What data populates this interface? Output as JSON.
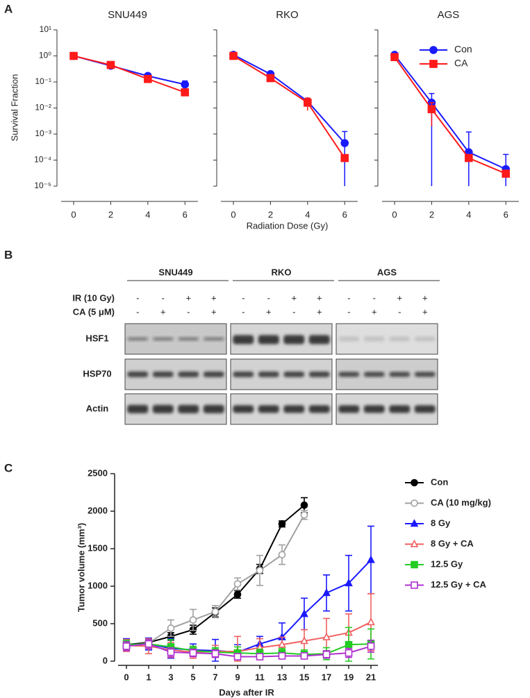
{
  "panel_labels": [
    "A",
    "B",
    "C"
  ],
  "chart_data": [
    {
      "type": "line",
      "title": "SNU449",
      "log_y": true,
      "ylabel": "Survival Fraction",
      "xlim": [
        -0.9,
        6.7
      ],
      "xticks": [
        0,
        2,
        4,
        6
      ],
      "ylim": [
        1e-05,
        10
      ],
      "yticks": [
        {
          "value": 1e-05,
          "label": "10⁻⁵"
        },
        {
          "value": 0.0001,
          "label": "10⁻⁴"
        },
        {
          "value": 0.001,
          "label": "10⁻³"
        },
        {
          "value": 0.01,
          "label": "10⁻²"
        },
        {
          "value": 0.1,
          "label": "10⁻¹"
        },
        {
          "value": 1,
          "label": "10⁰"
        },
        {
          "value": 10,
          "label": "10¹"
        }
      ],
      "x": [
        0,
        2,
        4,
        6
      ],
      "series": [
        {
          "name": "Con",
          "color": "#1a1aff",
          "marker": "circle",
          "values": [
            1,
            0.42,
            0.17,
            0.08
          ],
          "errors": [
            0.1,
            0.05,
            0.03,
            0.03
          ]
        },
        {
          "name": "CA",
          "color": "#ff1a1a",
          "marker": "square",
          "values": [
            1,
            0.45,
            0.13,
            0.04
          ],
          "errors": [
            0.1,
            0.05,
            0.02,
            0.008
          ]
        }
      ]
    },
    {
      "type": "line",
      "title": "RKO",
      "log_y": true,
      "xlabel": "Radiation Dose (Gy)",
      "xlim": [
        -0.9,
        6.7
      ],
      "xticks": [
        0,
        2,
        4,
        6
      ],
      "ylim": [
        1e-05,
        10
      ],
      "x": [
        0,
        2,
        4,
        6
      ],
      "series": [
        {
          "name": "Con",
          "color": "#1a1aff",
          "marker": "circle",
          "values": [
            1.1,
            0.2,
            0.018,
            0.00045
          ],
          "errors": [
            0.1,
            0.03,
            0.005,
            0.0008
          ]
        },
        {
          "name": "CA",
          "color": "#ff1a1a",
          "marker": "square",
          "values": [
            1,
            0.14,
            0.016,
            0.00012
          ],
          "errors": [
            0.1,
            0.02,
            0.008,
            2e-05
          ]
        }
      ]
    },
    {
      "type": "line",
      "title": "AGS",
      "log_y": true,
      "legend": "upper right",
      "xlim": [
        -0.9,
        6.7
      ],
      "xticks": [
        0,
        2,
        4,
        6
      ],
      "ylim": [
        1e-05,
        10
      ],
      "x": [
        0,
        2,
        4,
        6
      ],
      "series": [
        {
          "name": "Con",
          "color": "#1a1aff",
          "marker": "circle",
          "values": [
            1.1,
            0.016,
            0.0002,
            4.5e-05
          ],
          "errors": [
            0.2,
            0.02,
            0.001,
            0.00012
          ]
        },
        {
          "name": "CA",
          "color": "#ff1a1a",
          "marker": "square",
          "values": [
            0.9,
            0.009,
            0.00012,
            3e-05
          ],
          "errors": [
            0.1,
            0.007,
            3e-05,
            5e-06
          ]
        }
      ]
    },
    {
      "type": "line",
      "ylabel": "Tumor volume (mm³)",
      "xlabel": "Days after IR",
      "legend": "right",
      "categories": [
        "0",
        "1",
        "3",
        "5",
        "7",
        "9",
        "11",
        "13",
        "15",
        "17",
        "19",
        "21"
      ],
      "ylim": [
        0,
        2500
      ],
      "yticks": [
        0,
        500,
        1000,
        1500,
        2000,
        2500
      ],
      "series": [
        {
          "name": "Con",
          "color": "#000000",
          "marker": "circle",
          "filled": true,
          "values": [
            220,
            250,
            330,
            420,
            650,
            890,
            1230,
            1830,
            2080,
            null,
            null,
            null
          ],
          "errors": [
            40,
            50,
            50,
            60,
            60,
            50,
            60,
            40,
            100,
            null,
            null,
            null
          ]
        },
        {
          "name": "CA (10 mg/kg)",
          "color": "#a0a0a0",
          "marker": "circle",
          "filled": false,
          "values": [
            210,
            240,
            440,
            550,
            660,
            1030,
            1210,
            1420,
            1950,
            null,
            null,
            null
          ],
          "errors": [
            60,
            60,
            110,
            140,
            80,
            80,
            200,
            130,
            60,
            null,
            null,
            null
          ]
        },
        {
          "name": "8 Gy",
          "color": "#1a1aff",
          "marker": "triangle",
          "filled": true,
          "values": [
            220,
            230,
            170,
            150,
            140,
            120,
            230,
            320,
            630,
            910,
            1040,
            1350
          ],
          "errors": [
            80,
            80,
            130,
            80,
            150,
            100,
            100,
            190,
            210,
            240,
            370,
            450
          ]
        },
        {
          "name": "8 Gy + CA",
          "color": "#f06060",
          "marker": "triangle",
          "filled": false,
          "values": [
            210,
            200,
            150,
            120,
            130,
            130,
            180,
            220,
            270,
            320,
            380,
            520
          ],
          "errors": [
            80,
            100,
            100,
            80,
            80,
            200,
            120,
            100,
            150,
            250,
            250,
            380
          ]
        },
        {
          "name": "12.5 Gy",
          "color": "#22cc22",
          "marker": "square",
          "filled": true,
          "values": [
            220,
            230,
            190,
            140,
            120,
            110,
            100,
            110,
            90,
            100,
            220,
            230
          ],
          "errors": [
            60,
            60,
            100,
            60,
            60,
            80,
            60,
            60,
            60,
            80,
            230,
            200
          ]
        },
        {
          "name": "12.5 Gy + CA",
          "color": "#b030d0",
          "marker": "square",
          "filled": false,
          "values": [
            200,
            230,
            120,
            110,
            100,
            60,
            60,
            70,
            70,
            90,
            110,
            200
          ],
          "errors": [
            60,
            60,
            60,
            50,
            50,
            40,
            40,
            40,
            40,
            50,
            60,
            80
          ]
        }
      ]
    }
  ],
  "blot": {
    "groups": [
      "SNU449",
      "RKO",
      "AGS"
    ],
    "treatments": [
      {
        "label": "IR (10 Gy)",
        "signs": [
          "-",
          "-",
          "+",
          "+",
          "-",
          "-",
          "+",
          "+",
          "-",
          "-",
          "+",
          "+"
        ]
      },
      {
        "label": "CA (5 μM)",
        "signs": [
          "-",
          "+",
          "-",
          "+",
          "-",
          "+",
          "-",
          "+",
          "-",
          "+",
          "-",
          "+"
        ]
      }
    ],
    "proteins": [
      "HSF1",
      "HSP70",
      "Actin"
    ]
  }
}
